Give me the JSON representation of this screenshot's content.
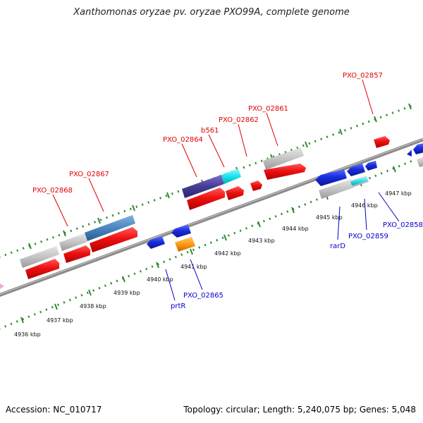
{
  "title": "Xanthomonas oryzae pv. oryzae PXO99A, complete genome",
  "accession": "Accession: NC_010717",
  "summary": "Topology: circular; Length: 5,240,075 bp; Genes: 5,048",
  "colors": {
    "backbone": "#8a8a8a",
    "tick": "#2e8b2e",
    "forward_label": "#e00000",
    "reverse_label": "#0000cc",
    "red_gene": "#ee1111",
    "blue_gene": "#1a2ee0",
    "gray_gene": "#c4c4c4",
    "steel_gene": "#4a86bf",
    "navy_gene": "#463c96",
    "cyan_gene": "#19e6f0",
    "orange_gene": "#ff9a10",
    "pink_gene": "#f3a6d9"
  },
  "scale_labels": [
    "4936 kbp",
    "4937 kbp",
    "4938 kbp",
    "4939 kbp",
    "4940 kbp",
    "4941 kbp",
    "4942 kbp",
    "4943 kbp",
    "4944 kbp",
    "4945 kbp",
    "4946 kbp",
    "4947 kbp"
  ],
  "forward_labels": [
    "PXO_02868",
    "PXO_02867",
    "PXO_02864",
    "b561",
    "PXO_02862",
    "PXO_02861",
    "PXO_02857"
  ],
  "reverse_labels": [
    "prtR",
    "PXO_02865",
    "rarD",
    "PXO_02859",
    "PXO_02858"
  ]
}
